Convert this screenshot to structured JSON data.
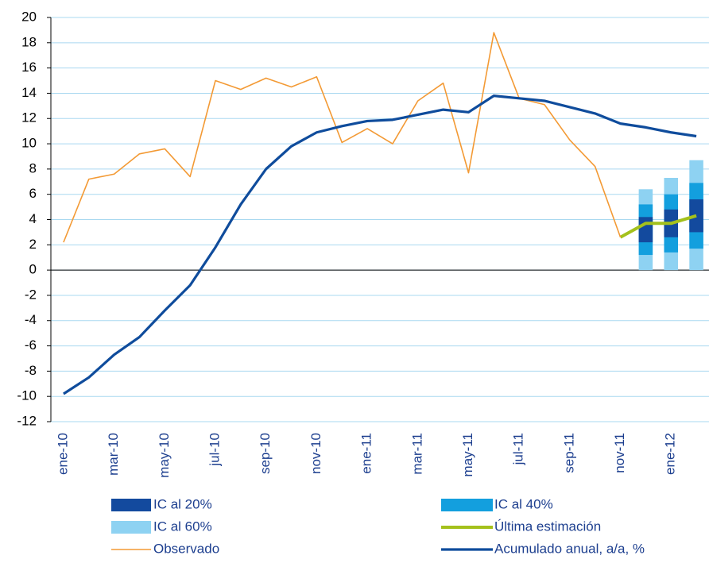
{
  "chart_data": {
    "type": "line",
    "categories": [
      "ene-10",
      null,
      "mar-10",
      null,
      "may-10",
      null,
      "jul-10",
      null,
      "sep-10",
      null,
      "nov-10",
      null,
      "ene-11",
      null,
      "mar-11",
      null,
      "may-11",
      null,
      "jul-11",
      null,
      "sep-11",
      null,
      "nov-11",
      null,
      "ene-12",
      null
    ],
    "ylim": [
      -12,
      20
    ],
    "yticks": [
      -12,
      -10,
      -8,
      -6,
      -4,
      -2,
      0,
      2,
      4,
      6,
      8,
      10,
      12,
      14,
      16,
      18,
      20
    ],
    "grid": true,
    "legend": "bottom",
    "series": [
      {
        "name": "IC al 20%",
        "color": "#134a9e",
        "low": [
          null,
          null,
          null,
          null,
          null,
          null,
          null,
          null,
          null,
          null,
          null,
          null,
          null,
          null,
          null,
          null,
          null,
          null,
          null,
          null,
          null,
          null,
          null,
          2.2,
          2.6,
          3.0
        ],
        "high": [
          null,
          null,
          null,
          null,
          null,
          null,
          null,
          null,
          null,
          null,
          null,
          null,
          null,
          null,
          null,
          null,
          null,
          null,
          null,
          null,
          null,
          null,
          null,
          4.2,
          4.8,
          5.6
        ]
      },
      {
        "name": "IC al 40%",
        "color": "#139fde",
        "low": [
          null,
          null,
          null,
          null,
          null,
          null,
          null,
          null,
          null,
          null,
          null,
          null,
          null,
          null,
          null,
          null,
          null,
          null,
          null,
          null,
          null,
          null,
          null,
          1.2,
          1.4,
          1.7
        ],
        "high": [
          null,
          null,
          null,
          null,
          null,
          null,
          null,
          null,
          null,
          null,
          null,
          null,
          null,
          null,
          null,
          null,
          null,
          null,
          null,
          null,
          null,
          null,
          null,
          5.2,
          6.0,
          6.9
        ]
      },
      {
        "name": "IC al 60%",
        "color": "#8ed2f2",
        "low": [
          null,
          null,
          null,
          null,
          null,
          null,
          null,
          null,
          null,
          null,
          null,
          null,
          null,
          null,
          null,
          null,
          null,
          null,
          null,
          null,
          null,
          null,
          null,
          0,
          0,
          0
        ],
        "high": [
          null,
          null,
          null,
          null,
          null,
          null,
          null,
          null,
          null,
          null,
          null,
          null,
          null,
          null,
          null,
          null,
          null,
          null,
          null,
          null,
          null,
          null,
          null,
          6.4,
          7.3,
          8.7
        ]
      },
      {
        "name": "Última estimación",
        "color": "#a4c11c",
        "width": 4,
        "values": [
          null,
          null,
          null,
          null,
          null,
          null,
          null,
          null,
          null,
          null,
          null,
          null,
          null,
          null,
          null,
          null,
          null,
          null,
          null,
          null,
          null,
          null,
          2.6,
          3.7,
          3.7,
          4.3
        ]
      },
      {
        "name": "Observado",
        "color": "#f39a35",
        "width": 1.6,
        "values": [
          2.2,
          7.2,
          7.6,
          9.2,
          9.6,
          7.4,
          15.0,
          14.3,
          15.2,
          14.5,
          15.3,
          10.1,
          11.2,
          10.0,
          13.4,
          14.8,
          7.7,
          18.8,
          13.6,
          13.1,
          10.3,
          8.2,
          2.6,
          null,
          null,
          null
        ]
      },
      {
        "name": "Acumulado anual, a/a, %",
        "color": "#0f4c9c",
        "width": 3.2,
        "values": [
          -9.8,
          -8.5,
          -6.7,
          -5.3,
          -3.2,
          -1.2,
          1.8,
          5.2,
          8.0,
          9.8,
          10.9,
          11.4,
          11.8,
          11.9,
          12.3,
          12.7,
          12.5,
          13.8,
          13.6,
          13.4,
          12.9,
          12.4,
          11.6,
          11.3,
          10.9,
          10.6
        ]
      }
    ]
  }
}
